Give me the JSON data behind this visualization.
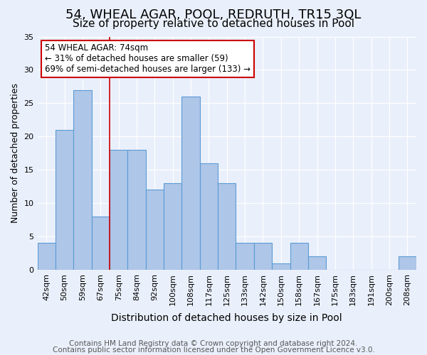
{
  "title": "54, WHEAL AGAR, POOL, REDRUTH, TR15 3QL",
  "subtitle": "Size of property relative to detached houses in Pool",
  "xlabel": "Distribution of detached houses by size in Pool",
  "ylabel": "Number of detached properties",
  "categories": [
    "42sqm",
    "50sqm",
    "59sqm",
    "67sqm",
    "75sqm",
    "84sqm",
    "92sqm",
    "100sqm",
    "108sqm",
    "117sqm",
    "125sqm",
    "133sqm",
    "142sqm",
    "150sqm",
    "158sqm",
    "167sqm",
    "175sqm",
    "183sqm",
    "191sqm",
    "200sqm",
    "208sqm"
  ],
  "values": [
    4,
    21,
    27,
    8,
    18,
    18,
    12,
    13,
    26,
    16,
    13,
    4,
    4,
    1,
    4,
    2,
    0,
    0,
    0,
    0,
    2
  ],
  "bar_color": "#aec6e8",
  "bar_edge_color": "#5b9bd5",
  "background_color": "#eaf0fb",
  "grid_color": "#ffffff",
  "annotation_line1": "54 WHEAL AGAR: 74sqm",
  "annotation_line2": "← 31% of detached houses are smaller (59)",
  "annotation_line3": "69% of semi-detached houses are larger (133) →",
  "annotation_box_color": "#ffffff",
  "annotation_box_edge_color": "#cc0000",
  "red_line_x": 3.5,
  "ylim": [
    0,
    35
  ],
  "yticks": [
    0,
    5,
    10,
    15,
    20,
    25,
    30,
    35
  ],
  "footer_line1": "Contains HM Land Registry data © Crown copyright and database right 2024.",
  "footer_line2": "Contains public sector information licensed under the Open Government Licence v3.0.",
  "title_fontsize": 13,
  "subtitle_fontsize": 11,
  "xlabel_fontsize": 10,
  "ylabel_fontsize": 9,
  "tick_fontsize": 8,
  "annotation_fontsize": 8.5,
  "footer_fontsize": 7.5
}
